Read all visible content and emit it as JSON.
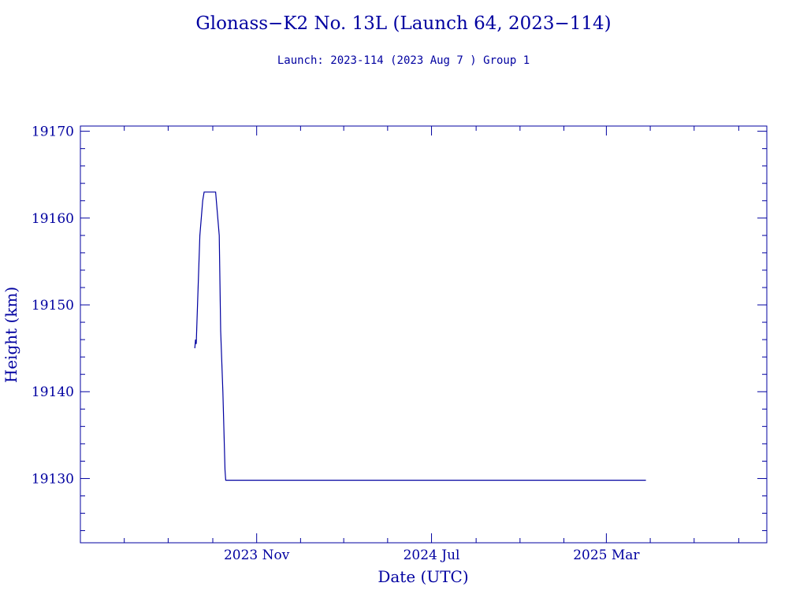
{
  "chart_data": {
    "type": "line",
    "title": "Glonass−K2 No. 13L (Launch 64, 2023−114)",
    "subtitle": "Launch: 2023-114  (2023 Aug  7 )  Group 1",
    "xlabel": "Date (UTC)",
    "ylabel": "Height (km)",
    "ylim": [
      19122.6,
      19170.6
    ],
    "xlim": [
      "2023-03-01",
      "2025-10-10"
    ],
    "y_ticks": [
      "19130",
      "19140",
      "19150",
      "19160",
      "19170"
    ],
    "x_ticks": [
      {
        "date": "2023-11-01",
        "label": "2023 Nov"
      },
      {
        "date": "2024-07-01",
        "label": "2024 Jul"
      },
      {
        "date": "2025-03-01",
        "label": "2025 Mar"
      }
    ],
    "grid": false,
    "colors": {
      "line": "#0000a0",
      "axes": "#0000a0",
      "text": "#0000a0"
    },
    "series": [
      {
        "x": [
          "2023-08-07",
          "2023-08-08",
          "2023-08-09",
          "2023-08-10",
          "2023-08-14",
          "2023-08-18",
          "2023-08-20",
          "2023-08-25",
          "2023-09-05",
          "2023-09-10",
          "2023-09-12",
          "2023-09-15",
          "2023-09-18",
          "2023-09-19",
          "2025-04-25"
        ],
        "y": [
          19145.0,
          19146.0,
          19145.5,
          19148.0,
          19158.0,
          19162.0,
          19163.0,
          19163.0,
          19163.0,
          19158.0,
          19147.0,
          19140.0,
          19131.0,
          19129.8,
          19129.8
        ]
      }
    ]
  }
}
